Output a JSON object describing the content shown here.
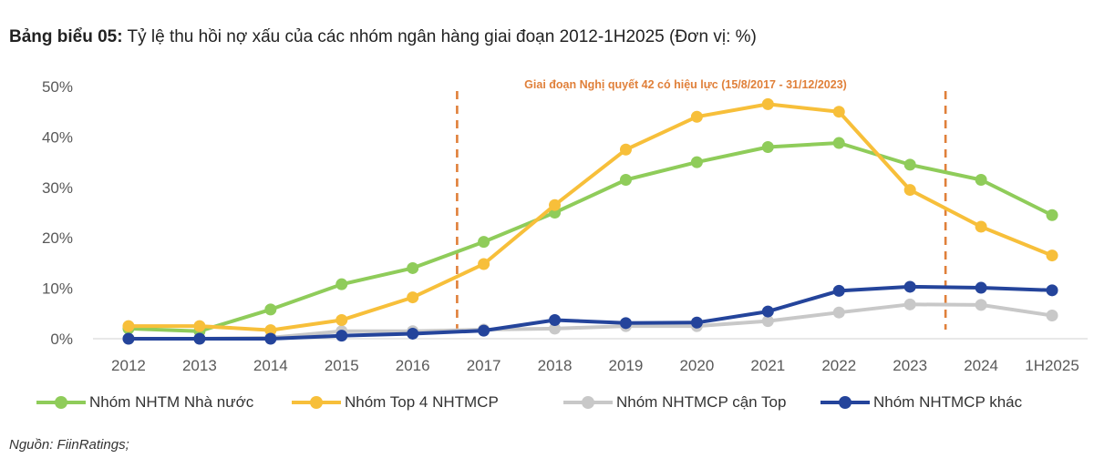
{
  "header": {
    "title_bold": "Bảng biểu 05:",
    "title_rest": " Tỷ lệ thu hồi nợ xấu của các nhóm ngân hàng giai đoạn 2012-1H2025 (Đơn vị: %)"
  },
  "annotation": "Giai đoạn Nghị quyết 42 có hiệu lực (15/8/2017 - 31/12/2023)",
  "source": "Nguồn: FiinRatings;",
  "colors": {
    "green": "#8fcc5a",
    "yellow": "#f7bf3a",
    "gray": "#c8c8c8",
    "blue": "#24449b",
    "orange": "#e0803a",
    "axis": "#d9d9d9"
  },
  "chart_data": {
    "type": "line",
    "title": "Tỷ lệ thu hồi nợ xấu của các nhóm ngân hàng giai đoạn 2012-1H2025",
    "xlabel": "",
    "ylabel": "",
    "ylim": [
      0,
      50
    ],
    "yticks": [
      0,
      10,
      20,
      30,
      40,
      50
    ],
    "ytick_labels": [
      "0%",
      "10%",
      "20%",
      "30%",
      "40%",
      "50%"
    ],
    "categories": [
      "2012",
      "2013",
      "2014",
      "2015",
      "2016",
      "2017",
      "2018",
      "2019",
      "2020",
      "2021",
      "2022",
      "2023",
      "2024",
      "1H2025"
    ],
    "period_markers": {
      "start": "15/8/2017",
      "end": "31/12/2023"
    },
    "series": [
      {
        "name": "Nhóm NHTM Nhà nước",
        "color": "#8fcc5a",
        "values": [
          2.0,
          1.5,
          5.8,
          10.8,
          14.0,
          19.2,
          25.0,
          31.5,
          35.0,
          38.0,
          38.8,
          34.5,
          31.5,
          24.5
        ]
      },
      {
        "name": "Nhóm Top 4 NHTMCP",
        "color": "#f7bf3a",
        "values": [
          2.5,
          2.5,
          1.7,
          3.7,
          8.2,
          14.8,
          26.5,
          37.5,
          44.0,
          46.5,
          45.0,
          29.5,
          22.2,
          16.5
        ]
      },
      {
        "name": "Nhóm NHTMCP cận Top",
        "color": "#c8c8c8",
        "values": [
          0.0,
          0.0,
          0.2,
          1.5,
          1.5,
          1.8,
          2.0,
          2.5,
          2.5,
          3.5,
          5.2,
          6.8,
          6.7,
          4.6
        ]
      },
      {
        "name": "Nhóm NHTMCP khác",
        "color": "#24449b",
        "values": [
          0.0,
          0.0,
          0.0,
          0.6,
          1.0,
          1.6,
          3.7,
          3.1,
          3.2,
          5.4,
          9.5,
          10.3,
          10.1,
          9.6
        ]
      }
    ],
    "legend_position": "bottom"
  }
}
